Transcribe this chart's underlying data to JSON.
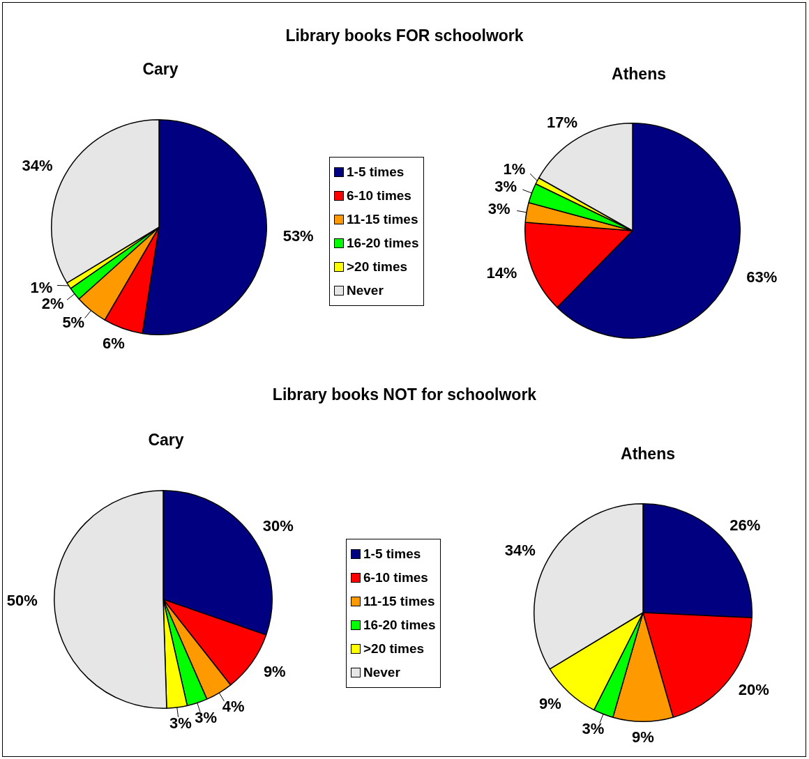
{
  "chart_data": [
    {
      "type": "pie",
      "title": "Cary",
      "annotations": [
        "Library books FOR schoolwork"
      ],
      "legend": "right",
      "categories": [
        "1-5 times",
        "6-10 times",
        "11-15 times",
        "16-20 times",
        ">20 times",
        "Never"
      ],
      "values": [
        53,
        6,
        5,
        2,
        1,
        34
      ],
      "value_labels": [
        "53%",
        "6%",
        "5%",
        "2%",
        "1%",
        "34%"
      ],
      "colors": [
        "#000080",
        "#ff0000",
        "#ff9900",
        "#00ff00",
        "#ffff00",
        "#e6e6e6"
      ]
    },
    {
      "type": "pie",
      "title": "Athens",
      "values": [
        63,
        14,
        3,
        3,
        1,
        17
      ],
      "value_labels": [
        "63%",
        "14%",
        "3%",
        "3%",
        "1%",
        "17%"
      ],
      "colors": [
        "#000080",
        "#ff0000",
        "#ff9900",
        "#00ff00",
        "#ffff00",
        "#e6e6e6"
      ]
    },
    {
      "type": "pie",
      "title": "Cary",
      "annotations": [
        "Library books NOT for schoolwork"
      ],
      "legend": "right",
      "categories": [
        "1-5 times",
        "6-10 times",
        "11-15 times",
        "16-20 times",
        ">20 times",
        "Never"
      ],
      "values": [
        30,
        9,
        4,
        3,
        3,
        50
      ],
      "value_labels": [
        "30%",
        "9%",
        "4%",
        "3%",
        "3%",
        "50%"
      ],
      "colors": [
        "#000080",
        "#ff0000",
        "#ff9900",
        "#00ff00",
        "#ffff00",
        "#e6e6e6"
      ]
    },
    {
      "type": "pie",
      "title": "Athens",
      "values": [
        26,
        20,
        9,
        3,
        9,
        34
      ],
      "value_labels": [
        "26%",
        "20%",
        "9%",
        "3%",
        "9%",
        "34%"
      ],
      "colors": [
        "#000080",
        "#ff0000",
        "#ff9900",
        "#00ff00",
        "#ffff00",
        "#e6e6e6"
      ]
    }
  ]
}
